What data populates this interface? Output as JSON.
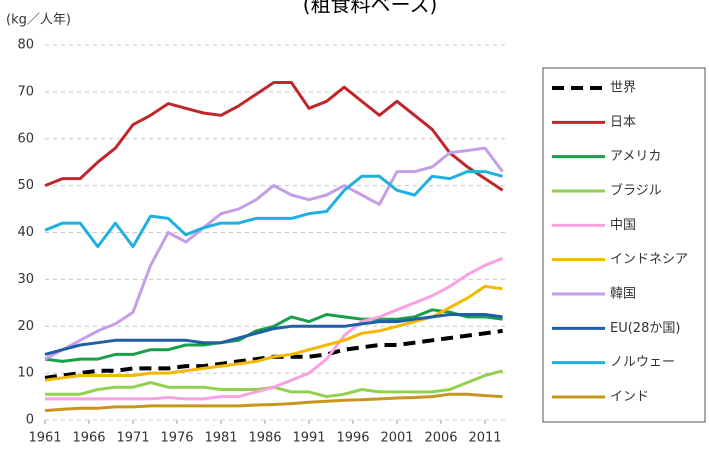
{
  "chart_data": {
    "type": "line",
    "title": "(粗食料ベース)",
    "y_label": "(kg／人年)",
    "x": [
      1961,
      1963,
      1965,
      1967,
      1969,
      1971,
      1973,
      1975,
      1977,
      1979,
      1981,
      1983,
      1985,
      1987,
      1989,
      1991,
      1993,
      1995,
      1997,
      1999,
      2001,
      2003,
      2005,
      2007,
      2009,
      2011,
      2013
    ],
    "xlim": [
      1961,
      2013
    ],
    "xticks": [
      1961,
      1966,
      1971,
      1976,
      1981,
      1986,
      1991,
      1996,
      2001,
      2006,
      2011
    ],
    "ylim": [
      0,
      80
    ],
    "yticks": [
      0,
      10,
      20,
      30,
      40,
      50,
      60,
      70,
      80
    ],
    "grid": true,
    "legend": "right",
    "series": [
      {
        "name": "世界",
        "color": "#000000",
        "style": "dashed",
        "values": [
          9,
          9.5,
          10,
          10.5,
          10.5,
          11,
          11,
          11,
          11.5,
          11.5,
          12,
          12.5,
          13,
          13.5,
          13.5,
          13.5,
          14,
          15,
          15.5,
          16,
          16,
          16.5,
          17,
          17.5,
          18,
          18.5,
          19
        ]
      },
      {
        "name": "日本",
        "color": "#c0272d",
        "values": [
          50,
          51.5,
          51.5,
          55,
          58,
          63,
          65,
          67.5,
          66.5,
          65.5,
          65,
          67,
          69.5,
          72,
          72,
          66.5,
          68,
          71,
          68,
          65,
          68,
          65,
          62,
          57,
          54,
          51.5,
          49
        ]
      },
      {
        "name": "アメリカ",
        "color": "#1a9e4a",
        "values": [
          13,
          12.5,
          13,
          13,
          14,
          14,
          15,
          15,
          16,
          16,
          16.5,
          17,
          19,
          20,
          22,
          21,
          22.5,
          22,
          21.5,
          21.5,
          21.5,
          22,
          23.5,
          23,
          22,
          22,
          21.5
        ]
      },
      {
        "name": "ブラジル",
        "color": "#92d050",
        "values": [
          5.5,
          5.5,
          5.5,
          6.5,
          7,
          7,
          8,
          7,
          7,
          7,
          6.5,
          6.5,
          6.5,
          7,
          6,
          6,
          5,
          5.5,
          6.5,
          6,
          6,
          6,
          6,
          6.5,
          8,
          9.5,
          10.5
        ]
      },
      {
        "name": "中国",
        "color": "#f8a2e2",
        "values": [
          4.5,
          4.5,
          4.5,
          4.5,
          4.5,
          4.5,
          4.5,
          4.8,
          4.5,
          4.5,
          5,
          5,
          6,
          7,
          8.5,
          10,
          13,
          18,
          21,
          22,
          23.5,
          25,
          26.5,
          28.5,
          31,
          33,
          34.5
        ]
      },
      {
        "name": "インドネシア",
        "color": "#f5b800",
        "values": [
          8.5,
          9,
          9.5,
          9.5,
          9.5,
          9.5,
          10,
          10,
          10.5,
          11,
          11.5,
          12,
          12.5,
          13.5,
          14,
          15,
          16,
          17,
          18.5,
          19,
          20,
          21,
          22,
          24,
          26,
          28.5,
          28
        ]
      },
      {
        "name": "韓国",
        "color": "#c49ee6",
        "values": [
          13,
          15,
          17,
          19,
          20.5,
          23,
          33,
          40,
          38,
          41,
          44,
          45,
          47,
          50,
          48,
          47,
          48,
          50,
          48,
          46,
          53,
          53,
          54,
          57,
          57.5,
          58,
          53
        ]
      },
      {
        "name": "EU(28か国)",
        "color": "#1f5fa8",
        "values": [
          14,
          15,
          16,
          16.5,
          17,
          17,
          17,
          17,
          17,
          16.5,
          16.5,
          17.5,
          18.5,
          19.5,
          20,
          20,
          20,
          20,
          20.5,
          21,
          21,
          21.5,
          22,
          22.5,
          22.5,
          22.5,
          22
        ]
      },
      {
        "name": "ノルウェー",
        "color": "#1fb0e0",
        "values": [
          40.5,
          42,
          42,
          37,
          42,
          37,
          43.5,
          43,
          39.5,
          41,
          42,
          42,
          43,
          43,
          43,
          44,
          44.5,
          49,
          52,
          52,
          49,
          48,
          52,
          51.5,
          53,
          53,
          52
        ]
      },
      {
        "name": "インド",
        "color": "#c8961e",
        "values": [
          2,
          2.3,
          2.5,
          2.5,
          2.8,
          2.8,
          3,
          3,
          3,
          3,
          3,
          3,
          3.2,
          3.3,
          3.5,
          3.8,
          4,
          4.2,
          4.3,
          4.5,
          4.7,
          4.8,
          5,
          5.5,
          5.5,
          5.2,
          5
        ]
      }
    ]
  }
}
